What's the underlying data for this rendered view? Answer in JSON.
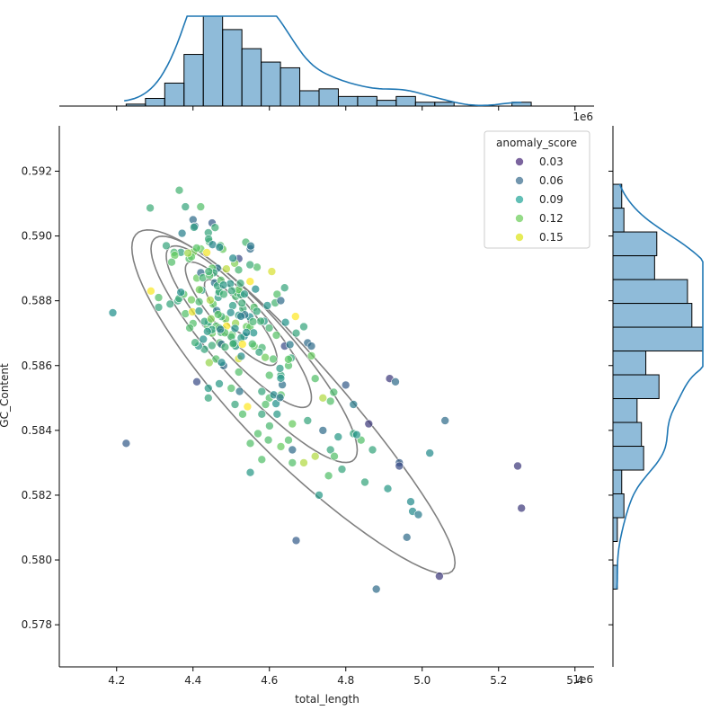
{
  "chart_data": {
    "type": "scatter",
    "subtype": "jointplot",
    "xlabel": "total_length",
    "ylabel": "GC_Content",
    "x_offset_label": "1e6",
    "x_unit_multiplier": 1000000,
    "xlim": [
      4.05,
      5.45
    ],
    "ylim": [
      0.5767,
      0.5934
    ],
    "x_ticks": [
      4.2,
      4.4,
      4.6,
      4.8,
      5.0,
      5.2,
      5.4
    ],
    "x_tick_labels": [
      "4.2",
      "4.4",
      "4.6",
      "4.8",
      "5.0",
      "5.2",
      "5.4"
    ],
    "y_ticks": [
      0.578,
      0.58,
      0.582,
      0.584,
      0.586,
      0.588,
      0.59,
      0.592
    ],
    "y_tick_labels": [
      "0.578",
      "0.580",
      "0.582",
      "0.584",
      "0.586",
      "0.588",
      "0.590",
      "0.592"
    ],
    "grid": false,
    "legend": {
      "title": "anomaly_score",
      "placement": "top-right",
      "entries": [
        {
          "label": "0.03",
          "color": "#482878"
        },
        {
          "label": "0.06",
          "color": "#3b6d8f"
        },
        {
          "label": "0.09",
          "color": "#26a69a"
        },
        {
          "label": "0.12",
          "color": "#6ccd5a"
        },
        {
          "label": "0.15",
          "color": "#dde318"
        }
      ]
    },
    "colormap": "viridis",
    "color_range": [
      0.0,
      0.17
    ],
    "kde_color": "#808080",
    "hist_color": "#1f77b4",
    "points_fixed": [
      [
        4.225,
        0.5836,
        0.05
      ],
      [
        4.41,
        0.5855,
        0.04
      ],
      [
        4.45,
        0.5904,
        0.05
      ],
      [
        4.52,
        0.5893,
        0.04
      ],
      [
        4.55,
        0.5896,
        0.06
      ],
      [
        4.64,
        0.5866,
        0.04
      ],
      [
        4.66,
        0.5834,
        0.06
      ],
      [
        4.67,
        0.5806,
        0.05
      ],
      [
        4.7,
        0.5867,
        0.06
      ],
      [
        4.71,
        0.5866,
        0.06
      ],
      [
        4.74,
        0.584,
        0.06
      ],
      [
        4.8,
        0.5854,
        0.05
      ],
      [
        4.82,
        0.5848,
        0.07
      ],
      [
        4.86,
        0.5842,
        0.03
      ],
      [
        4.88,
        0.5791,
        0.06
      ],
      [
        4.915,
        0.5856,
        0.03
      ],
      [
        4.93,
        0.5855,
        0.06
      ],
      [
        4.94,
        0.583,
        0.05
      ],
      [
        4.94,
        0.5829,
        0.04
      ],
      [
        4.96,
        0.5807,
        0.06
      ],
      [
        4.97,
        0.5818,
        0.08
      ],
      [
        4.975,
        0.5815,
        0.08
      ],
      [
        4.99,
        0.5814,
        0.07
      ],
      [
        5.02,
        0.5833,
        0.08
      ],
      [
        5.045,
        0.5795,
        0.03
      ],
      [
        5.06,
        0.5843,
        0.06
      ],
      [
        5.25,
        0.5829,
        0.03
      ],
      [
        5.26,
        0.5816,
        0.03
      ],
      [
        4.33,
        0.5897,
        0.1
      ],
      [
        4.38,
        0.5909,
        0.1
      ],
      [
        4.4,
        0.5905,
        0.06
      ],
      [
        4.405,
        0.5903,
        0.06
      ],
      [
        4.31,
        0.5881,
        0.12
      ],
      [
        4.31,
        0.5878,
        0.1
      ],
      [
        4.34,
        0.5879,
        0.1
      ],
      [
        4.42,
        0.5909,
        0.12
      ],
      [
        4.44,
        0.5901,
        0.1
      ],
      [
        4.43,
        0.5865,
        0.1
      ],
      [
        4.44,
        0.5853,
        0.09
      ],
      [
        4.44,
        0.585,
        0.1
      ],
      [
        4.46,
        0.5862,
        0.12
      ],
      [
        4.48,
        0.586,
        0.06
      ],
      [
        4.51,
        0.5848,
        0.1
      ],
      [
        4.53,
        0.5845,
        0.12
      ],
      [
        4.55,
        0.5836,
        0.12
      ],
      [
        4.55,
        0.5827,
        0.09
      ],
      [
        4.58,
        0.5831,
        0.12
      ],
      [
        4.62,
        0.5845,
        0.09
      ],
      [
        4.63,
        0.5835,
        0.13
      ],
      [
        4.65,
        0.5837,
        0.12
      ],
      [
        4.66,
        0.583,
        0.12
      ],
      [
        4.73,
        0.582,
        0.09
      ],
      [
        4.755,
        0.5826,
        0.12
      ],
      [
        4.76,
        0.5834,
        0.1
      ],
      [
        4.77,
        0.5832,
        0.12
      ],
      [
        4.79,
        0.5828,
        0.1
      ],
      [
        4.82,
        0.5839,
        0.1
      ],
      [
        4.84,
        0.5837,
        0.12
      ],
      [
        4.87,
        0.5834,
        0.1
      ],
      [
        4.91,
        0.5822,
        0.09
      ],
      [
        4.85,
        0.5824,
        0.1
      ],
      [
        4.6,
        0.585,
        0.12
      ],
      [
        4.58,
        0.5852,
        0.1
      ],
      [
        4.57,
        0.5839,
        0.12
      ],
      [
        4.7,
        0.5843,
        0.1
      ],
      [
        4.72,
        0.5856,
        0.12
      ],
      [
        4.76,
        0.5849,
        0.12
      ],
      [
        4.78,
        0.5838,
        0.09
      ],
      [
        4.74,
        0.585,
        0.15
      ],
      [
        4.72,
        0.5832,
        0.15
      ],
      [
        4.69,
        0.583,
        0.15
      ],
      [
        4.66,
        0.5842,
        0.13
      ],
      [
        4.63,
        0.5857,
        0.1
      ],
      [
        4.61,
        0.5862,
        0.12
      ],
      [
        4.65,
        0.586,
        0.12
      ],
      [
        4.67,
        0.587,
        0.1
      ],
      [
        4.69,
        0.5872,
        0.1
      ],
      [
        4.71,
        0.5863,
        0.13
      ],
      [
        4.62,
        0.5882,
        0.12
      ],
      [
        4.64,
        0.5884,
        0.1
      ],
      [
        4.56,
        0.5878,
        0.12
      ],
      [
        4.54,
        0.5872,
        0.13
      ],
      [
        4.52,
        0.5858,
        0.12
      ],
      [
        4.5,
        0.5853,
        0.12
      ],
      [
        4.47,
        0.5867,
        0.12
      ],
      [
        4.45,
        0.587,
        0.13
      ],
      [
        4.4,
        0.5873,
        0.12
      ],
      [
        4.38,
        0.5876,
        0.12
      ],
      [
        4.36,
        0.588,
        0.1
      ],
      [
        4.39,
        0.5893,
        0.12
      ],
      [
        4.41,
        0.5887,
        0.13
      ],
      [
        4.42,
        0.5896,
        0.13
      ],
      [
        4.58,
        0.5845,
        0.1
      ],
      [
        4.59,
        0.5848,
        0.12
      ],
      [
        4.6,
        0.5857,
        0.12
      ],
      [
        4.56,
        0.5866,
        0.13
      ]
    ],
    "kde_levels": [
      {
        "scale": 1.0
      },
      {
        "scale": 0.78
      },
      {
        "scale": 0.6
      },
      {
        "scale": 0.44
      },
      {
        "scale": 0.3
      }
    ]
  }
}
